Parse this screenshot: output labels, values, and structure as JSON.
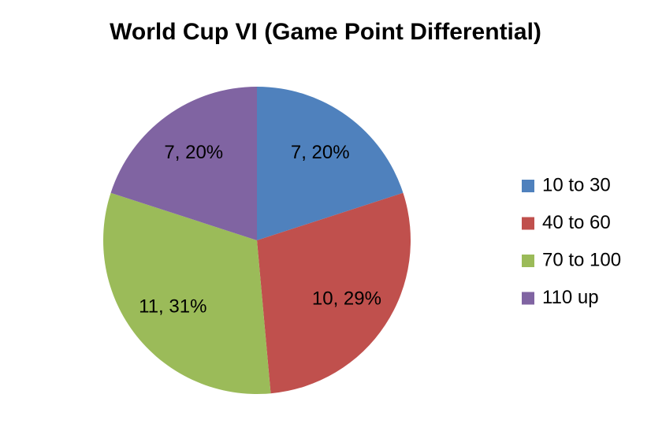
{
  "chart_data": {
    "type": "pie",
    "title": "World Cup VI (Game Point Differential)",
    "categories": [
      "10 to 30",
      "40 to 60",
      "70 to 100",
      "110 up"
    ],
    "values": [
      7,
      10,
      11,
      7
    ],
    "value_labels": [
      "7, 20%",
      "10, 29%",
      "11, 31%",
      "7, 20%"
    ],
    "colors": [
      "#4f81bd",
      "#c0504d",
      "#9bbb59",
      "#8064a2"
    ],
    "legend": "right"
  }
}
